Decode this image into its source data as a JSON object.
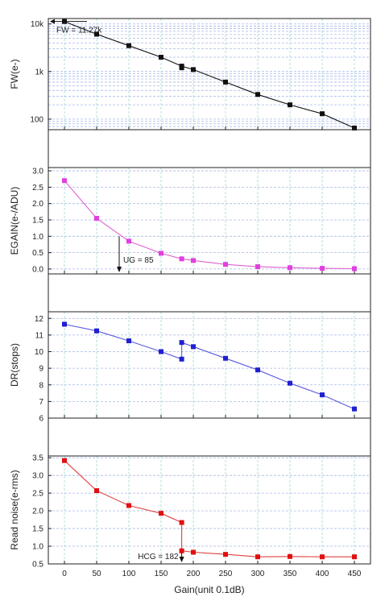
{
  "chart_data": [
    {
      "type": "line",
      "ylabel": "FW(e-)",
      "yscale": "log",
      "ylim": [
        60,
        13000
      ],
      "yticks": [
        {
          "v": 100,
          "label": "100"
        },
        {
          "v": 1000,
          "label": "1k"
        },
        {
          "v": 10000,
          "label": "10k"
        }
      ],
      "color": "#111111",
      "marker_color": "#111111",
      "x": [
        0,
        50,
        100,
        150,
        182,
        200,
        250,
        300,
        350,
        400,
        450
      ],
      "values": [
        11270,
        6100,
        3500,
        2000,
        1300,
        1100,
        600,
        330,
        200,
        130,
        65
      ],
      "extra_points": [
        {
          "x": 182,
          "y": 1200
        }
      ],
      "annotation": {
        "text": "FW = 11.27k",
        "x": 0,
        "y": 11270,
        "arrow": "left"
      }
    },
    {
      "type": "line",
      "ylabel": "EGAIN(e-/ADU)",
      "yscale": "linear",
      "ylim": [
        -0.15,
        3.1
      ],
      "yticks": [
        {
          "v": 0.0,
          "label": "0.0"
        },
        {
          "v": 0.5,
          "label": "0.5"
        },
        {
          "v": 1.0,
          "label": "1.0"
        },
        {
          "v": 1.5,
          "label": "1.5"
        },
        {
          "v": 2.0,
          "label": "2.0"
        },
        {
          "v": 2.5,
          "label": "2.5"
        },
        {
          "v": 3.0,
          "label": "3.0"
        }
      ],
      "color": "#e060d0",
      "marker_color": "#e040e0",
      "x": [
        0,
        50,
        100,
        150,
        182,
        200,
        250,
        300,
        350,
        400,
        450
      ],
      "values": [
        2.7,
        1.55,
        0.85,
        0.48,
        0.31,
        0.26,
        0.14,
        0.07,
        0.04,
        0.02,
        0.01
      ],
      "annotation": {
        "text": "UG = 85",
        "x": 85,
        "y": 1.0,
        "arrow": "down"
      }
    },
    {
      "type": "line",
      "ylabel": "DR(stops)",
      "yscale": "linear",
      "ylim": [
        6,
        12.4
      ],
      "yticks": [
        {
          "v": 6,
          "label": "6"
        },
        {
          "v": 7,
          "label": "7"
        },
        {
          "v": 8,
          "label": "8"
        },
        {
          "v": 9,
          "label": "9"
        },
        {
          "v": 10,
          "label": "10"
        },
        {
          "v": 11,
          "label": "11"
        },
        {
          "v": 12,
          "label": "12"
        }
      ],
      "color": "#5a5ae0",
      "marker_color": "#2020d0",
      "x": [
        0,
        50,
        100,
        150,
        182,
        182,
        200,
        250,
        300,
        350,
        400,
        450
      ],
      "values": [
        11.65,
        11.25,
        10.65,
        10.0,
        9.55,
        10.55,
        10.3,
        9.6,
        8.9,
        8.1,
        7.4,
        6.55
      ]
    },
    {
      "type": "line",
      "ylabel": "Read noise(e-rms)",
      "yscale": "linear",
      "ylim": [
        0.5,
        3.55
      ],
      "yticks": [
        {
          "v": 0.5,
          "label": "0.5"
        },
        {
          "v": 1.0,
          "label": "1.0"
        },
        {
          "v": 1.5,
          "label": "1.5"
        },
        {
          "v": 2.0,
          "label": "2.0"
        },
        {
          "v": 2.5,
          "label": "2.5"
        },
        {
          "v": 3.0,
          "label": "3.0"
        },
        {
          "v": 3.5,
          "label": "3.5"
        }
      ],
      "color": "#e04040",
      "marker_color": "#e01010",
      "x": [
        0,
        50,
        100,
        150,
        182,
        182,
        200,
        250,
        300,
        350,
        400,
        450
      ],
      "values": [
        3.42,
        2.57,
        2.15,
        1.93,
        1.67,
        0.87,
        0.83,
        0.77,
        0.7,
        0.71,
        0.7,
        0.7
      ],
      "annotation": {
        "text": "HCG = 182",
        "x": 182,
        "y": 0.75,
        "arrow": "down"
      }
    }
  ],
  "x_axis": {
    "label": "Gain(unit 0.1dB)",
    "ticks": [
      0,
      50,
      100,
      150,
      200,
      250,
      300,
      350,
      400,
      450
    ],
    "xlim": [
      -25,
      475
    ]
  },
  "colors": {
    "grid_vertical": "#9ed8d4",
    "grid_horizontal": "#a8b8e8",
    "axis": "#222222"
  }
}
